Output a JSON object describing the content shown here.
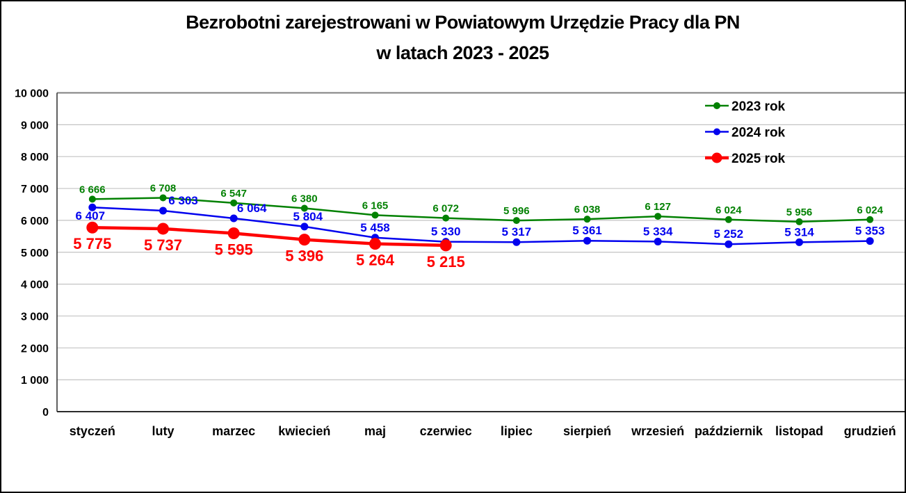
{
  "title": {
    "line1": "Bezrobotni zarejestrowani w Powiatowym Urzędzie Pracy dla PN",
    "line2": "w latach 2023 - 2025"
  },
  "chart_data": {
    "type": "line",
    "title": "Bezrobotni zarejestrowani w Powiatowym Urzędzie Pracy dla PN w latach 2023 - 2025",
    "categories": [
      "styczeń",
      "luty",
      "marzec",
      "kwiecień",
      "maj",
      "czerwiec",
      "lipiec",
      "sierpień",
      "wrzesień",
      "październik",
      "listopad",
      "grudzień"
    ],
    "series": [
      {
        "name": "2023 rok",
        "color": "#028102",
        "values": [
          6666,
          6708,
          6547,
          6380,
          6165,
          6072,
          5996,
          6038,
          6127,
          6024,
          5956,
          6024
        ]
      },
      {
        "name": "2024 rok",
        "color": "#0202ee",
        "values": [
          6407,
          6303,
          6064,
          5804,
          5458,
          5330,
          5317,
          5361,
          5334,
          5252,
          5314,
          5353
        ]
      },
      {
        "name": "2025 rok",
        "color": "#fe0000",
        "values": [
          5775,
          5737,
          5595,
          5396,
          5264,
          5215
        ]
      }
    ],
    "ylim": [
      0,
      10000
    ],
    "ytick_step": 1000,
    "ytick_labels": [
      "10 000",
      "9 000",
      "8 000",
      "7 000",
      "6 000",
      "5 000",
      "4 000",
      "3 000",
      "2 000",
      "1 000",
      "0"
    ],
    "grid": true,
    "data_labels": true,
    "legend_position": "top-right-inside",
    "number_format": "space thousands separator"
  },
  "colors": {
    "background": "#ffffff",
    "border": "#000000",
    "grid": "#c3c3c3",
    "grid_top": "#7f7f7f",
    "axis": "#2b2b2b",
    "text": "#000000"
  }
}
